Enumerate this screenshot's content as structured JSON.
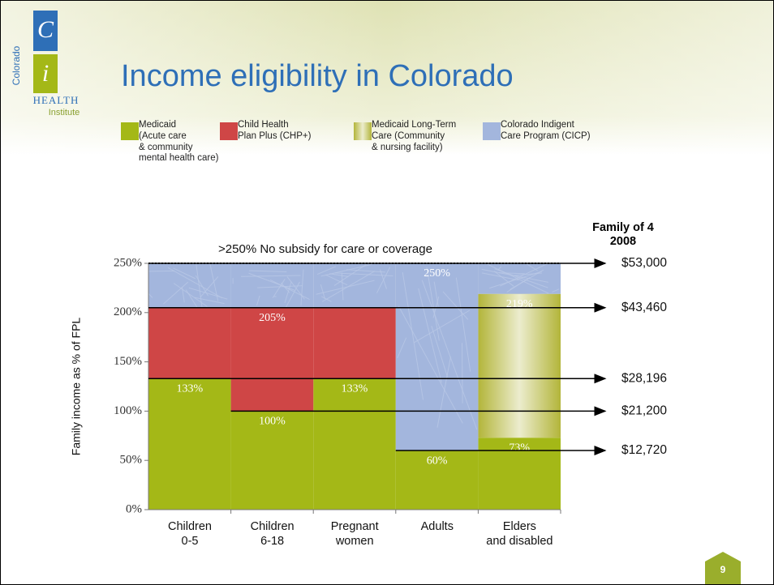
{
  "logo": {
    "letter1": "C",
    "letter2": "i",
    "name": "HEALTH",
    "sub": "Institute",
    "side": "Colorado"
  },
  "slide_title": "Income eligibility in Colorado",
  "page_number": "9",
  "chart_data": {
    "type": "range",
    "top_note": ">250% No subsidy for care or coverage",
    "right_header": "Family of 4\n2008",
    "y_axis_label": "Family income as % of FPL",
    "categories": [
      "Children\n0-5",
      "Children\n6-18",
      "Pregnant\nwomen",
      "Adults",
      "Elders\nand disabled"
    ],
    "series": [
      {
        "name": "Medicaid\n(Acute care\n& community\nmental health care)",
        "color": "#a4b817",
        "values": [
          133,
          100,
          133,
          60,
          73
        ],
        "value_labels": [
          "133%",
          "100%",
          "133%",
          "60%",
          "73%"
        ]
      },
      {
        "name": "Child Health\nPlan Plus (CHP+)",
        "color": "#cf4646",
        "values": [
          205,
          205,
          205,
          null,
          null
        ],
        "value_labels": [
          null,
          "205%",
          null,
          null,
          null
        ]
      },
      {
        "name": "Medicaid Long-Term\nCare (Community\n& nursing facility)",
        "color": "#b3b53a",
        "values": [
          null,
          null,
          null,
          null,
          219
        ],
        "value_labels": [
          null,
          null,
          null,
          null,
          "219%"
        ]
      },
      {
        "name": "Colorado Indigent\nCare Program (CICP)",
        "color": "#a3b6dd",
        "values": [
          250,
          250,
          250,
          250,
          250
        ],
        "value_labels": [
          null,
          null,
          null,
          "250%",
          null
        ]
      }
    ],
    "ylim": [
      0,
      250
    ],
    "yticks": [
      {
        "value": 0,
        "label": "0%"
      },
      {
        "value": 50,
        "label": "50%"
      },
      {
        "value": 100,
        "label": "100%"
      },
      {
        "value": 150,
        "label": "150%"
      },
      {
        "value": 200,
        "label": "200%"
      },
      {
        "value": 250,
        "label": "250%"
      }
    ],
    "thresholds": [
      {
        "value": 250,
        "label": "$53,000"
      },
      {
        "value": 205,
        "label": "$43,460"
      },
      {
        "value": 133,
        "label": "$28,196"
      },
      {
        "value": 100,
        "label": "$21,200"
      },
      {
        "value": 60,
        "label": "$12,720"
      }
    ]
  }
}
